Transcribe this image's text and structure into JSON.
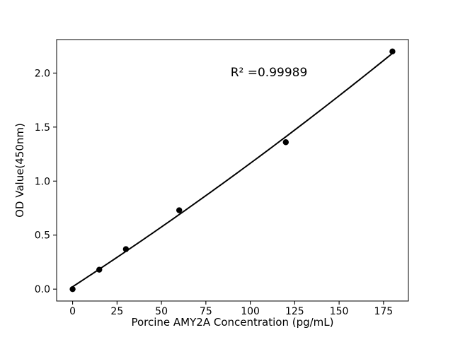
{
  "figure": {
    "background": "#ffffff"
  },
  "chart_data": {
    "type": "scatter",
    "title": "",
    "xlabel": "Porcine AMY2A Concentration (pg/mL)",
    "ylabel": "OD Value(450nm)",
    "annotation": "R² =0.99989",
    "x": [
      0,
      15,
      30,
      60,
      120,
      180
    ],
    "y": [
      0.0,
      0.18,
      0.37,
      0.73,
      1.36,
      2.2
    ],
    "fit": "quadratic",
    "xticks": [
      0,
      25,
      50,
      75,
      100,
      125,
      150,
      175
    ],
    "yticks": [
      0.0,
      0.5,
      1.0,
      1.5,
      2.0
    ],
    "xlim": [
      -9,
      189
    ],
    "ylim": [
      -0.11,
      2.31
    ],
    "grid": false,
    "legend": null,
    "marker_color": "#000000",
    "line_color": "#000000",
    "background_color": "#ffffff"
  }
}
